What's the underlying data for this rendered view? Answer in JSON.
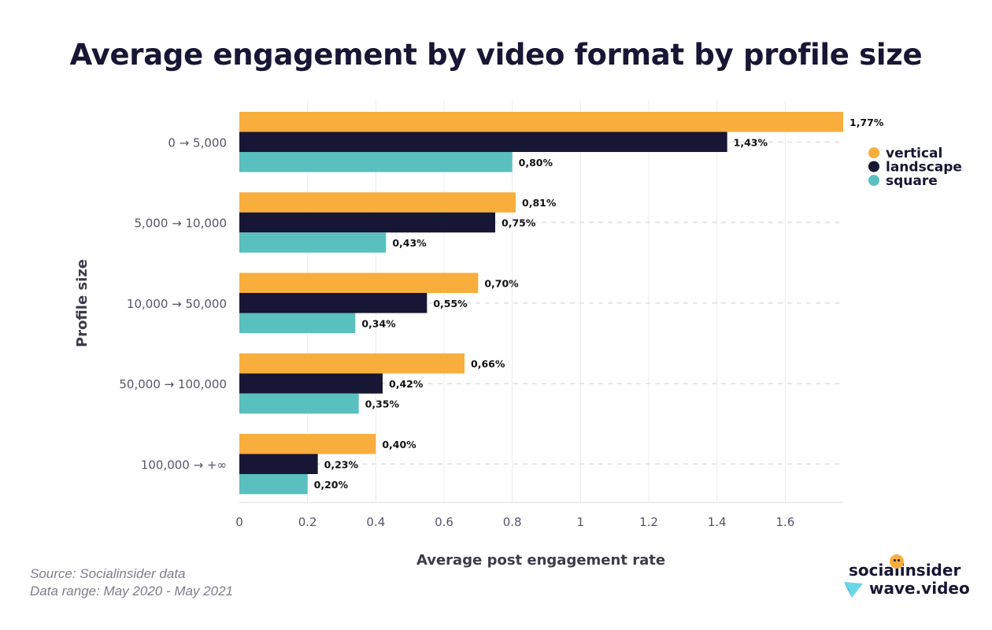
{
  "chart_data": {
    "type": "bar",
    "orientation": "horizontal",
    "title": "Average engagement by video format by profile size",
    "xlabel": "Average post engagement rate",
    "ylabel": "Profile size",
    "categories": [
      "0 → 5,000",
      "5,000 → 10,000",
      "10,000 → 50,000",
      "50,000 → 100,000",
      "100,000 → +∞"
    ],
    "series": [
      {
        "name": "vertical",
        "color": "#f8ae3c",
        "values": [
          1.77,
          0.81,
          0.7,
          0.66,
          0.4
        ],
        "labels": [
          "1,77%",
          "0,81%",
          "0,70%",
          "0,66%",
          "0,40%"
        ]
      },
      {
        "name": "landscape",
        "color": "#171634",
        "values": [
          1.43,
          0.75,
          0.55,
          0.42,
          0.23
        ],
        "labels": [
          "1,43%",
          "0,75%",
          "0,55%",
          "0,42%",
          "0,23%"
        ]
      },
      {
        "name": "square",
        "color": "#59bfbf",
        "values": [
          0.8,
          0.43,
          0.34,
          0.35,
          0.2
        ],
        "labels": [
          "0,80%",
          "0,43%",
          "0,34%",
          "0,35%",
          "0,20%"
        ]
      }
    ],
    "xlim": [
      0,
      1.77
    ],
    "xticks": [
      0,
      0.2,
      0.4,
      0.6,
      0.8,
      1,
      1.2,
      1.4,
      1.6
    ],
    "xtick_labels": [
      "0",
      "0.2",
      "0.4",
      "0.6",
      "0.8",
      "1",
      "1.2",
      "1.4",
      "1.6"
    ],
    "grid": true,
    "legend_position": "top-right"
  },
  "footer": {
    "source": "Source: Socialinsider data",
    "range": "Data range: May 2020 - May 2021"
  },
  "logos": {
    "socialinsider": "socialinsider",
    "wave": "wave.video"
  }
}
